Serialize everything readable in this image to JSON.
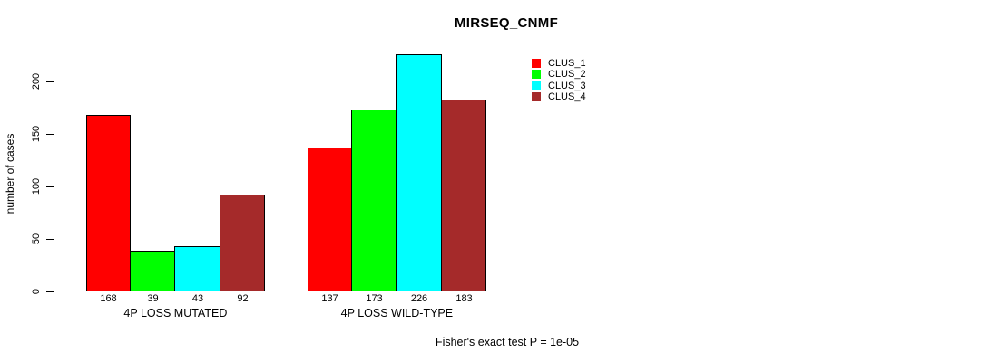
{
  "chart_data": {
    "type": "bar",
    "title": "MIRSEQ_CNMF",
    "ylabel": "number of cases",
    "xlabel": "",
    "categories": [
      "4P LOSS MUTATED",
      "4P LOSS WILD-TYPE"
    ],
    "series": [
      {
        "name": "CLUS_1",
        "color": "#FF0000",
        "values": [
          168,
          137
        ]
      },
      {
        "name": "CLUS_2",
        "color": "#00FF00",
        "values": [
          39,
          173
        ]
      },
      {
        "name": "CLUS_3",
        "color": "#00FFFF",
        "values": [
          43,
          226
        ]
      },
      {
        "name": "CLUS_4",
        "color": "#A52A2A",
        "values": [
          92,
          183
        ]
      }
    ],
    "yticks": [
      0,
      50,
      100,
      150,
      200
    ],
    "ylim": [
      0,
      235
    ],
    "grid": false,
    "bar_value_labels_shown": true,
    "legend_position": "right",
    "legend_entries": [
      "CLUS_1",
      "CLUS_2",
      "CLUS_3",
      "CLUS_4"
    ],
    "annotation": "Fisher's exact test P = 1e-05"
  }
}
